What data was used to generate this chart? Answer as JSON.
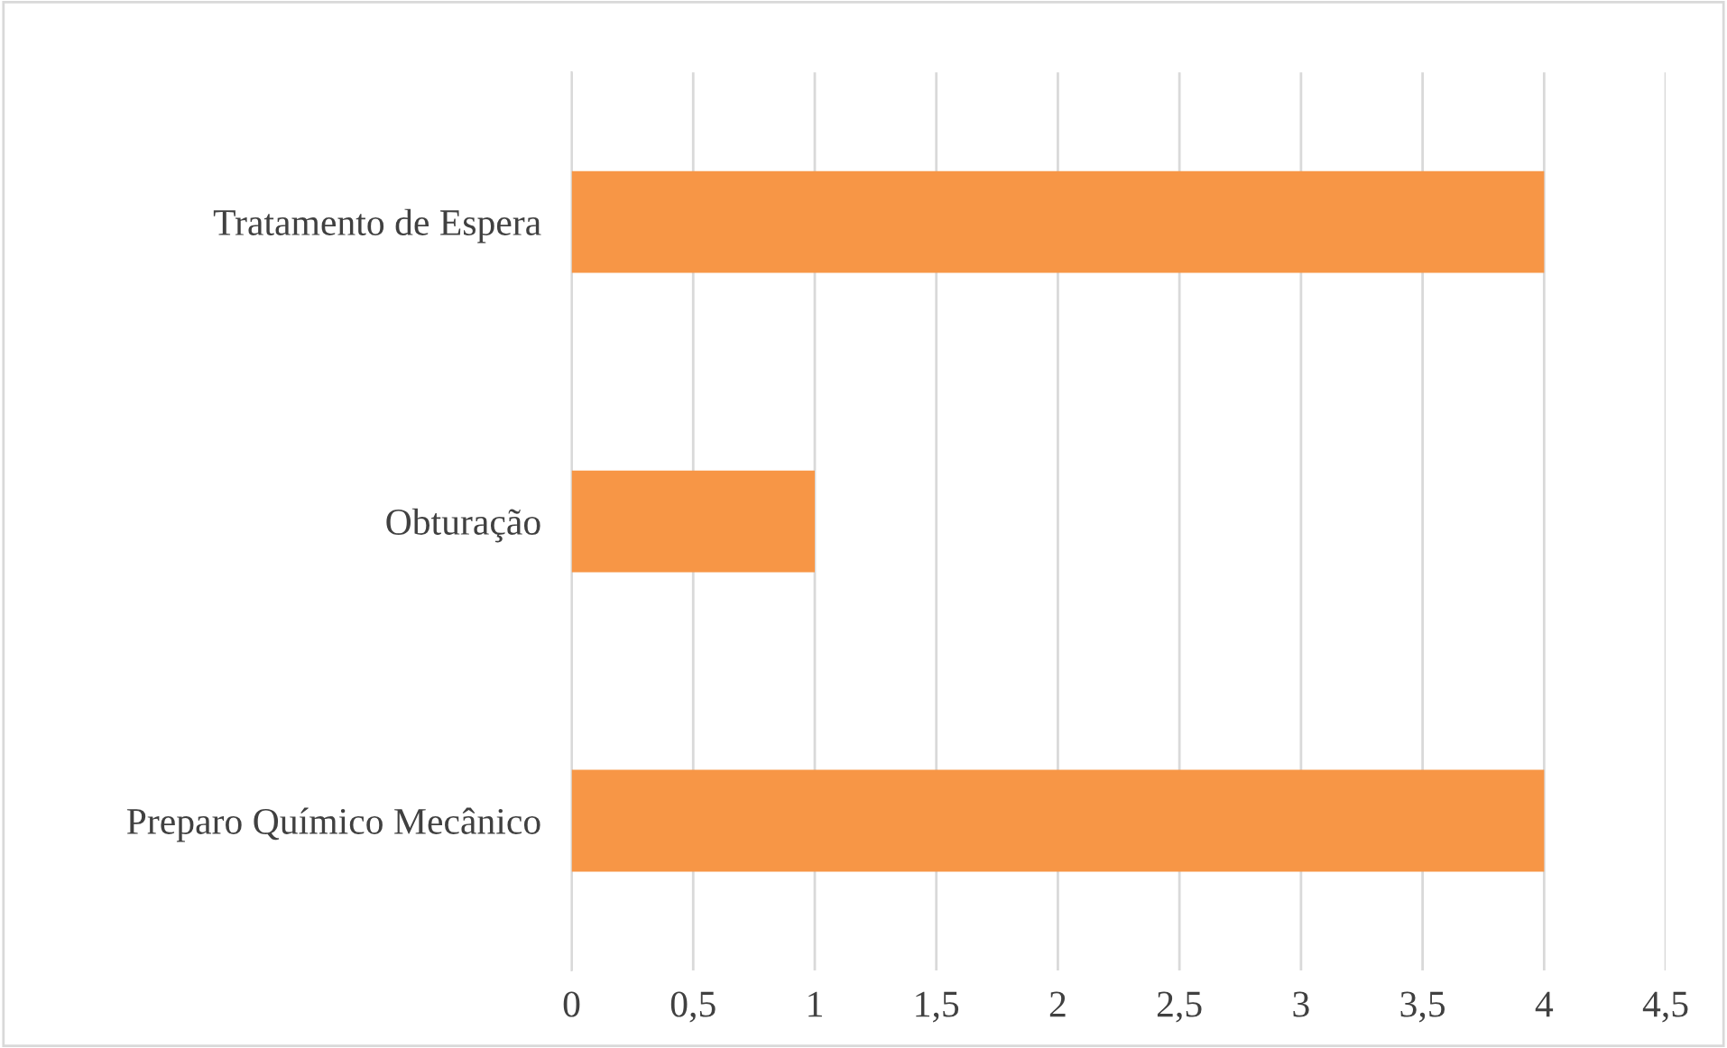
{
  "chart_data": {
    "type": "bar",
    "orientation": "horizontal",
    "categories": [
      "Tratamento de Espera",
      "Obturação",
      "Preparo Químico Mecânico"
    ],
    "values": [
      4,
      1,
      4
    ],
    "color": "#f79646",
    "xlim": [
      0,
      4.5
    ],
    "xticks": [
      0,
      {
        "value": 0.5,
        "label": "0,5"
      },
      1,
      {
        "value": 1.5,
        "label": "1,5"
      },
      2,
      {
        "value": 2.5,
        "label": "2,5"
      },
      3,
      {
        "value": 3.5,
        "label": "3,5"
      },
      4,
      {
        "value": 4.5,
        "label": "4,5"
      }
    ],
    "grid": "x",
    "legend": false
  }
}
